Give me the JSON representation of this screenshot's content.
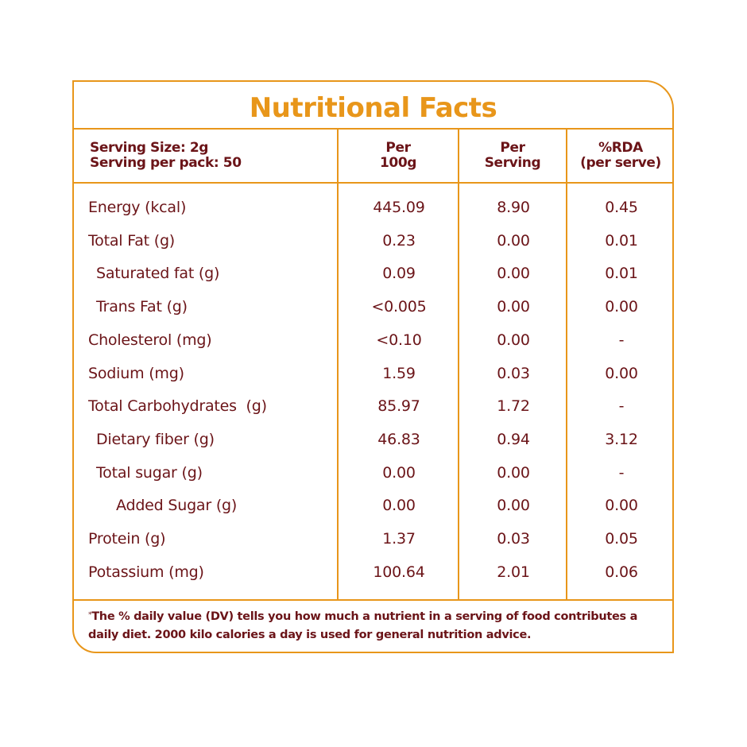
{
  "title": "Nutritional Facts",
  "header": {
    "serving_size": "Serving Size: 2g",
    "serving_per_pack": "Serving per pack: 50",
    "col_per100_line1": "Per",
    "col_per100_line2": "100g",
    "col_perserving_line1": "Per",
    "col_perserving_line2": "Serving",
    "col_rda_line1": "%RDA",
    "col_rda_line2": "(per serve)"
  },
  "rows": [
    {
      "name": "Energy (kcal)",
      "per_100g": "445.09",
      "per_serving": "8.90",
      "rda": "0.45",
      "indent": 0
    },
    {
      "name": "Total Fat (g)",
      "per_100g": "0.23",
      "per_serving": "0.00",
      "rda": "0.01",
      "indent": 0
    },
    {
      "name": "Saturated fat (g)",
      "per_100g": "0.09",
      "per_serving": "0.00",
      "rda": "0.01",
      "indent": 1
    },
    {
      "name": "Trans Fat (g)",
      "per_100g": "<0.005",
      "per_serving": "0.00",
      "rda": "0.00",
      "indent": 1
    },
    {
      "name": "Cholesterol (mg)",
      "per_100g": "<0.10",
      "per_serving": "0.00",
      "rda": "-",
      "indent": 0
    },
    {
      "name": "Sodium (mg)",
      "per_100g": "1.59",
      "per_serving": "0.03",
      "rda": "0.00",
      "indent": 0
    },
    {
      "name": "Total Carbohydrates  (g)",
      "per_100g": "85.97",
      "per_serving": "1.72",
      "rda": "-",
      "indent": 0
    },
    {
      "name": "Dietary fiber (g)",
      "per_100g": "46.83",
      "per_serving": "0.94",
      "rda": "3.12",
      "indent": 1
    },
    {
      "name": "Total sugar (g)",
      "per_100g": "0.00",
      "per_serving": "0.00",
      "rda": "-",
      "indent": 1
    },
    {
      "name": "Added Sugar (g)",
      "per_100g": "0.00",
      "per_serving": "0.00",
      "rda": "0.00",
      "indent": 2
    },
    {
      "name": "Protein (g)",
      "per_100g": "1.37",
      "per_serving": "0.03",
      "rda": "0.05",
      "indent": 0
    },
    {
      "name": "Potassium (mg)",
      "per_100g": "100.64",
      "per_serving": "2.01",
      "rda": "0.06",
      "indent": 0
    }
  ],
  "footnote": {
    "marker": "*",
    "line1": "The % daily value (DV) tells you how much a nutrient in a serving of food contributes a",
    "line2": "daily diet. 2000 kilo calories a day is used for general nutrition advice."
  },
  "colors": {
    "accent": "#e8961a",
    "text": "#6b1418",
    "background": "#ffffff"
  }
}
